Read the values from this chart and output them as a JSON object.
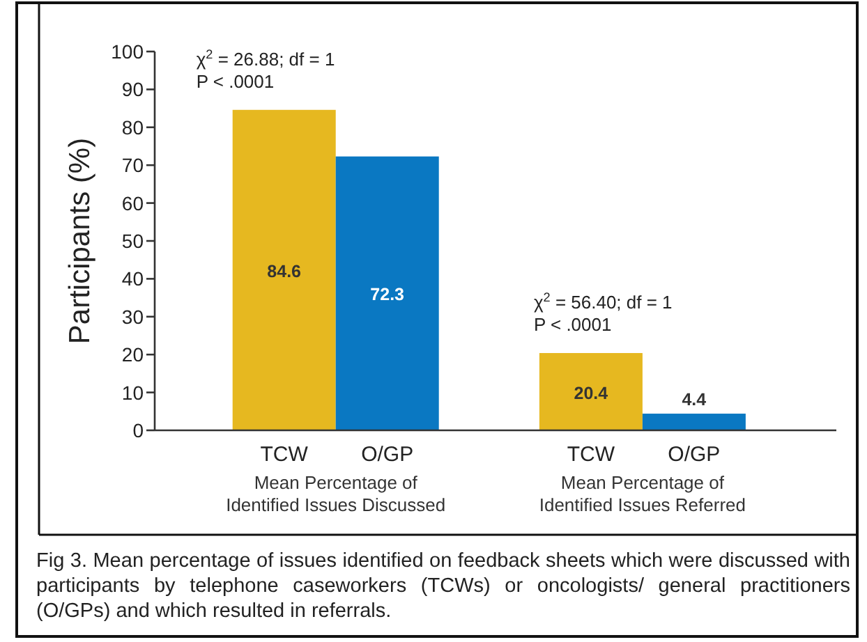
{
  "chart_data": {
    "type": "bar",
    "ylabel": "Participants (%)",
    "categories": [
      "Mean Percentage of Identified Issues Discussed",
      "Mean Percentage of Identified Issues Referred"
    ],
    "series": [
      {
        "name": "TCW",
        "color": "#e6b820",
        "values": [
          84.6,
          20.4
        ]
      },
      {
        "name": "O/GP",
        "color": "#0a78c2",
        "values": [
          72.3,
          4.4
        ]
      }
    ],
    "ylim": [
      0,
      100
    ],
    "yticks": [
      0,
      10,
      20,
      30,
      40,
      50,
      60,
      70,
      80,
      90,
      100
    ],
    "grid": false,
    "data_labels": true,
    "annotations": [
      "χ$^{2}$ = 26.88; df = 1\nP < .0001",
      "χ$^{2}$ = 56.40; df = 1\nP < .0001",
      "Fig 3. Mean percentage of issues identified on feedback sheets which were discussed with participants by telephone caseworkers (TCWs) or oncologists/ general practitioners (O/GPs) and which resulted in referrals."
    ]
  }
}
